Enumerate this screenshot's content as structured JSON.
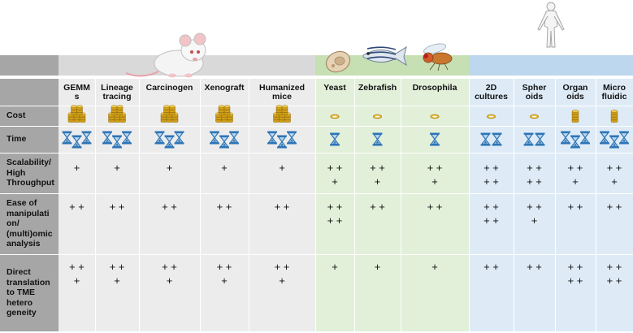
{
  "columns": [
    {
      "label": "GEMM\ns"
    },
    {
      "label": "Lineage\ntracing"
    },
    {
      "label": "Carcinogen"
    },
    {
      "label": "Xenograft"
    },
    {
      "label": "Humanized\nmice"
    },
    {
      "label": "Yeast"
    },
    {
      "label": "Zebrafish"
    },
    {
      "label": "Drosophila"
    },
    {
      "label": "2D\ncultures"
    },
    {
      "label": "Spher\noids"
    },
    {
      "label": "Organ\noids"
    },
    {
      "label": "Micro\nfluidic"
    }
  ],
  "rows": [
    {
      "label": "Cost"
    },
    {
      "label": "Time"
    },
    {
      "label": "Scalability/\nHigh\nThroughput"
    },
    {
      "label": "Ease of\nmanipulati\non/\n(multi)omic\nanalysis"
    },
    {
      "label": "Direct\ntranslation\nto TME\nhetero\ngeneity"
    }
  ],
  "cost_icons": [
    "coin-stack-large-icon",
    "coin-stack-large-icon",
    "coin-stack-large-icon",
    "coin-stack-large-icon",
    "coin-stack-large-icon",
    "single-coin-icon",
    "single-coin-icon",
    "single-coin-icon",
    "single-coin-icon",
    "single-coin-icon",
    "coin-stack-small-icon",
    "coin-stack-small-icon"
  ],
  "time_hourglass_counts": [
    3,
    3,
    3,
    3,
    3,
    1,
    1,
    1,
    2,
    2,
    3,
    3
  ],
  "scores": {
    "scalability": [
      [
        "+"
      ],
      [
        "+"
      ],
      [
        "+"
      ],
      [
        "+"
      ],
      [
        "+"
      ],
      [
        "+ +",
        "+"
      ],
      [
        "+ +",
        "+"
      ],
      [
        "+ +",
        "+"
      ],
      [
        "+ +",
        "+ +"
      ],
      [
        "+ +",
        "+ +"
      ],
      [
        "+ +",
        "+"
      ],
      [
        "+ +",
        "+"
      ]
    ],
    "ease": [
      [
        "+ +"
      ],
      [
        "+ +"
      ],
      [
        "+ +"
      ],
      [
        "+ +"
      ],
      [
        "+ +"
      ],
      [
        "+ +",
        "+ +"
      ],
      [
        "+ +"
      ],
      [
        "+ +"
      ],
      [
        "+ +",
        "+ +"
      ],
      [
        "+ +",
        "+"
      ],
      [
        "+ +"
      ],
      [
        "+ +"
      ]
    ],
    "translation": [
      [
        "+ +",
        "+"
      ],
      [
        "+ +",
        "+"
      ],
      [
        "+ +",
        "+"
      ],
      [
        "+ +",
        "+"
      ],
      [
        "+ +",
        "+"
      ],
      [
        "+"
      ],
      [
        "+"
      ],
      [
        "+"
      ],
      [
        "+ +"
      ],
      [
        "+ +"
      ],
      [
        "+ +",
        "+ +"
      ],
      [
        "+ +",
        "+ +"
      ]
    ]
  },
  "groups": [
    {
      "name": "mouse-models",
      "color": "#ececec",
      "header_color": "#d9d9d9"
    },
    {
      "name": "non-mammalian-models",
      "color": "#e2efd9",
      "header_color": "#c6e0b4"
    },
    {
      "name": "human-models",
      "color": "#deebf7",
      "header_color": "#bdd7ee"
    }
  ],
  "label_column_color": "#a6a6a6"
}
